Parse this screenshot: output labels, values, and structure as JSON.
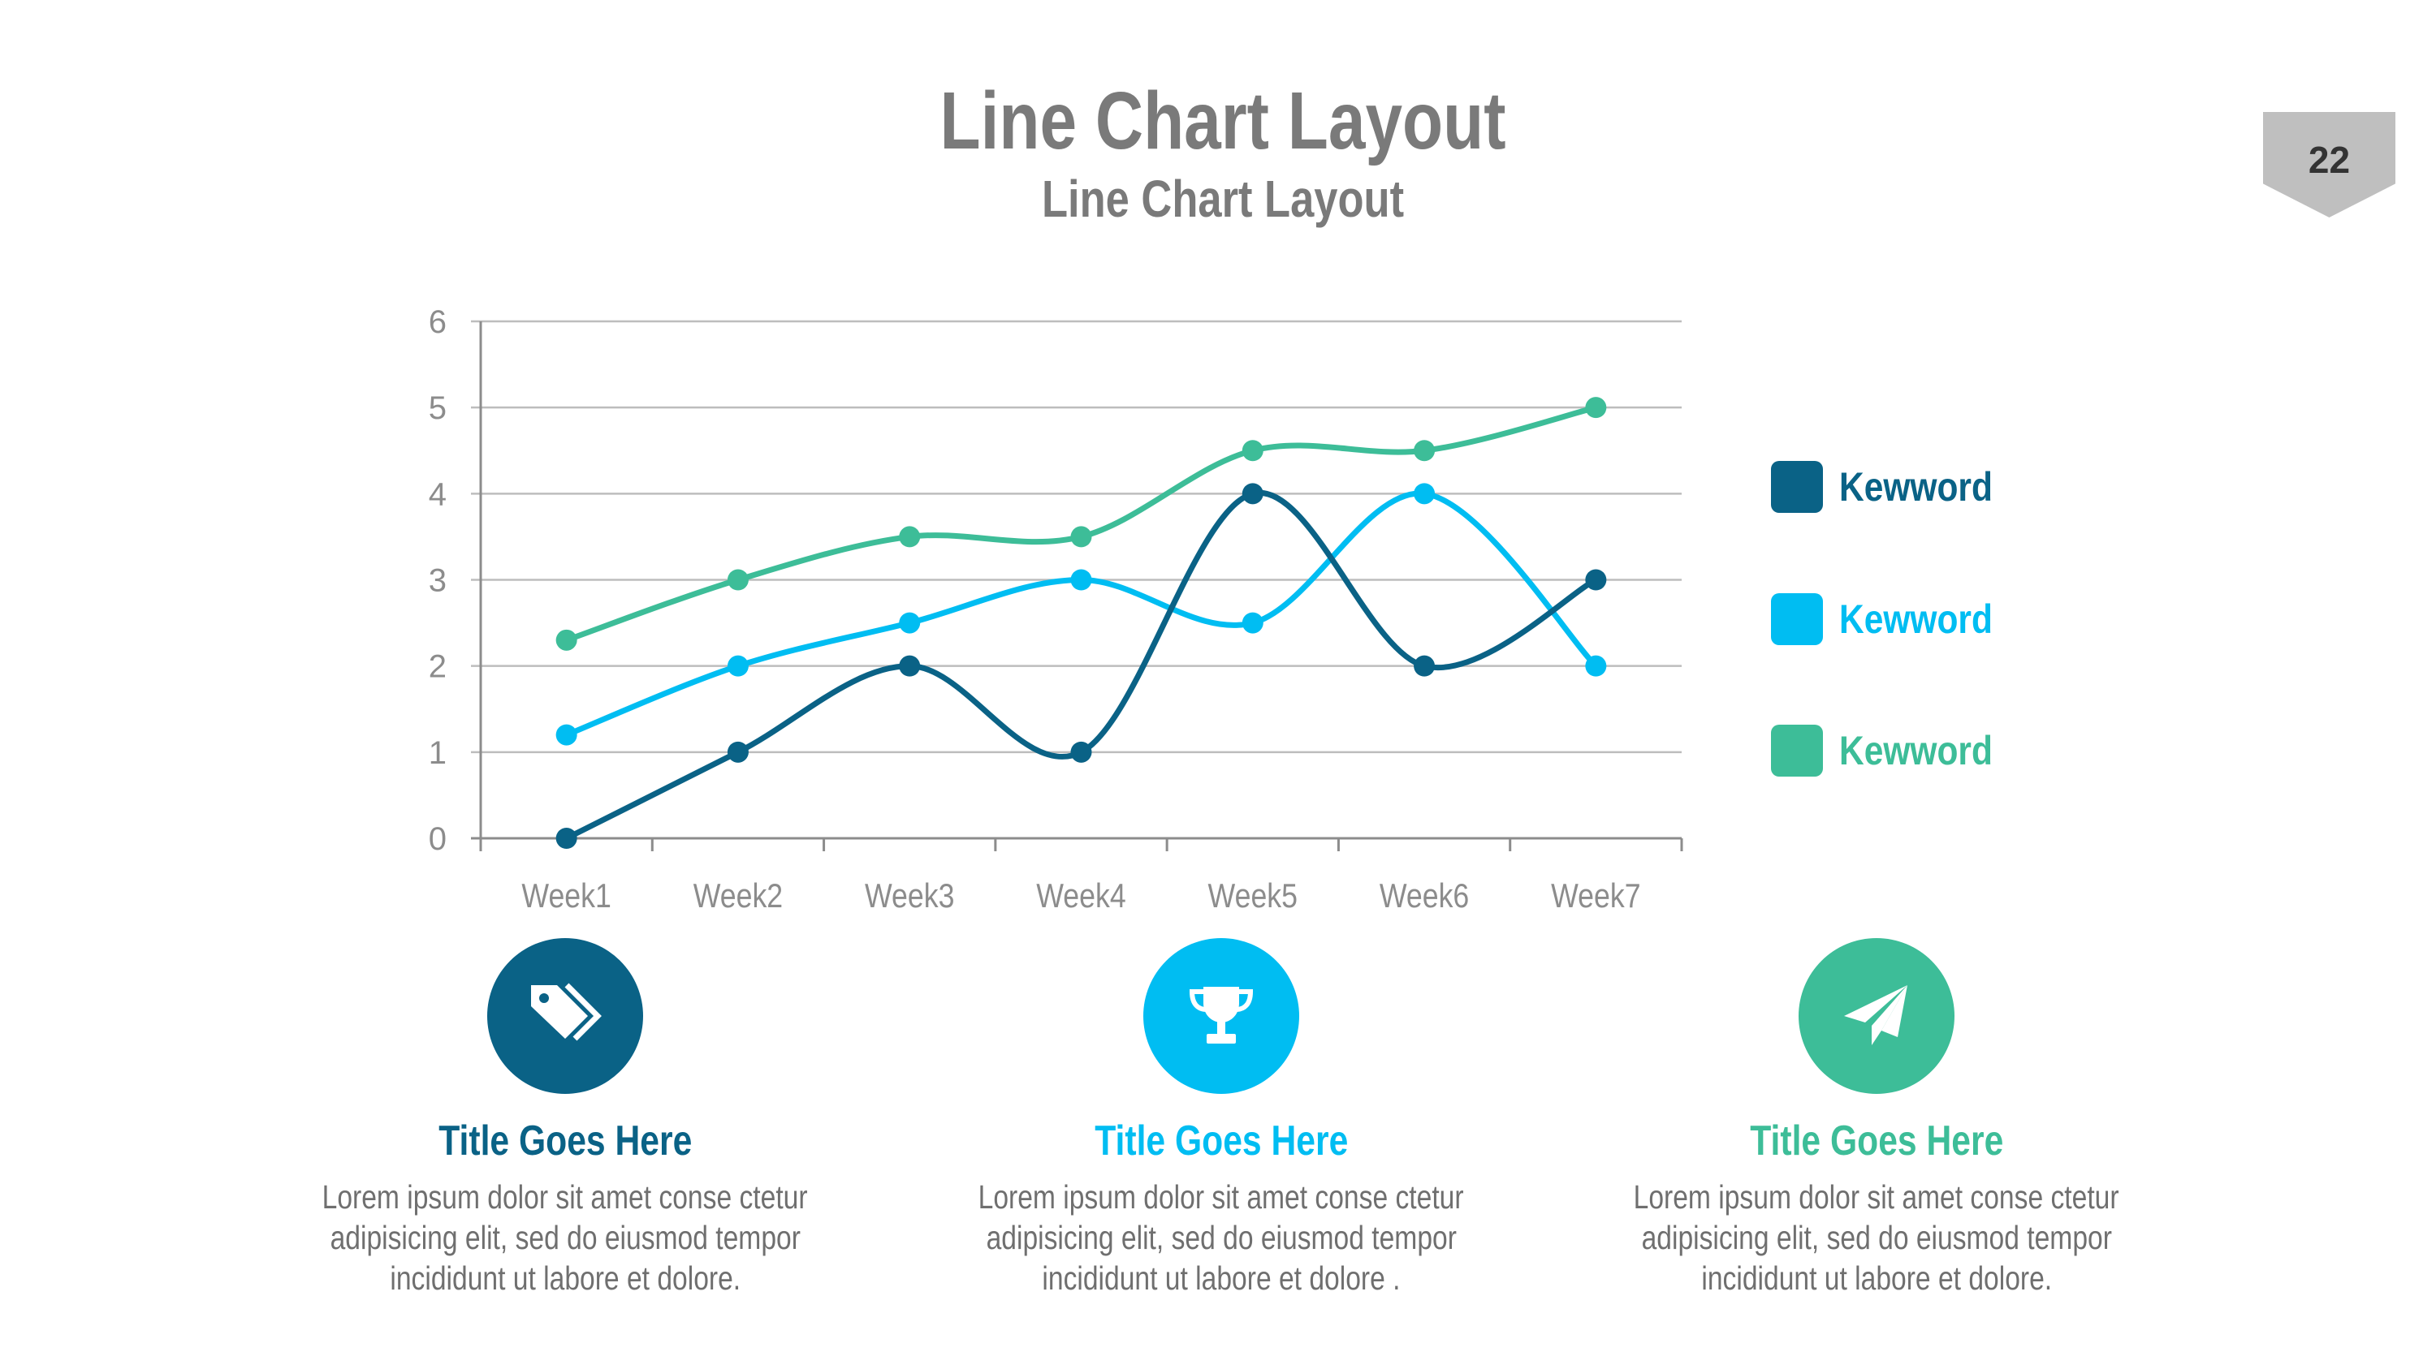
{
  "header": {
    "title": "Line Chart Layout",
    "subtitle": "Line Chart Layout",
    "page_number": "22"
  },
  "colors": {
    "dark": "#0a6286",
    "light": "#00bdf2",
    "green": "#3dbd98",
    "text": "#7a7a7a"
  },
  "chart_data": {
    "type": "line",
    "categories": [
      "Week1",
      "Week2",
      "Week3",
      "Week4",
      "Week5",
      "Week6",
      "Week7"
    ],
    "ylim": [
      0,
      6
    ],
    "yticks": [
      "0",
      "1",
      "2",
      "3",
      "4",
      "5",
      "6"
    ],
    "grid": true,
    "smooth": true,
    "legend_position": "right",
    "series": [
      {
        "name": "Kewword",
        "color": "#0a6286",
        "values": [
          0,
          1,
          2,
          1,
          4,
          2,
          3
        ]
      },
      {
        "name": "Kewword",
        "color": "#00bdf2",
        "values": [
          1.2,
          2,
          2.5,
          3,
          2.5,
          4,
          2
        ]
      },
      {
        "name": "Kewword",
        "color": "#3dbd98",
        "values": [
          2.3,
          3,
          3.5,
          3.5,
          4.5,
          4.5,
          5
        ]
      }
    ]
  },
  "cards": [
    {
      "icon": "tags-icon",
      "color": "#0a6286",
      "title": "Title Goes Here",
      "lines": [
        "Lorem ipsum dolor sit amet conse ctetur",
        "adipisicing elit, sed do eiusmod tempor",
        "incididunt ut labore et dolore."
      ]
    },
    {
      "icon": "trophy-icon",
      "color": "#00bdf2",
      "title": "Title Goes Here",
      "lines": [
        "Lorem ipsum dolor sit amet conse ctetur",
        "adipisicing elit, sed do eiusmod tempor",
        "incididunt ut labore et dolore ."
      ]
    },
    {
      "icon": "paper-plane-icon",
      "color": "#3dbd98",
      "title": "Title Goes Here",
      "lines": [
        "Lorem ipsum dolor sit amet conse ctetur",
        "adipisicing elit, sed do eiusmod tempor",
        "incididunt ut labore et dolore."
      ]
    }
  ]
}
